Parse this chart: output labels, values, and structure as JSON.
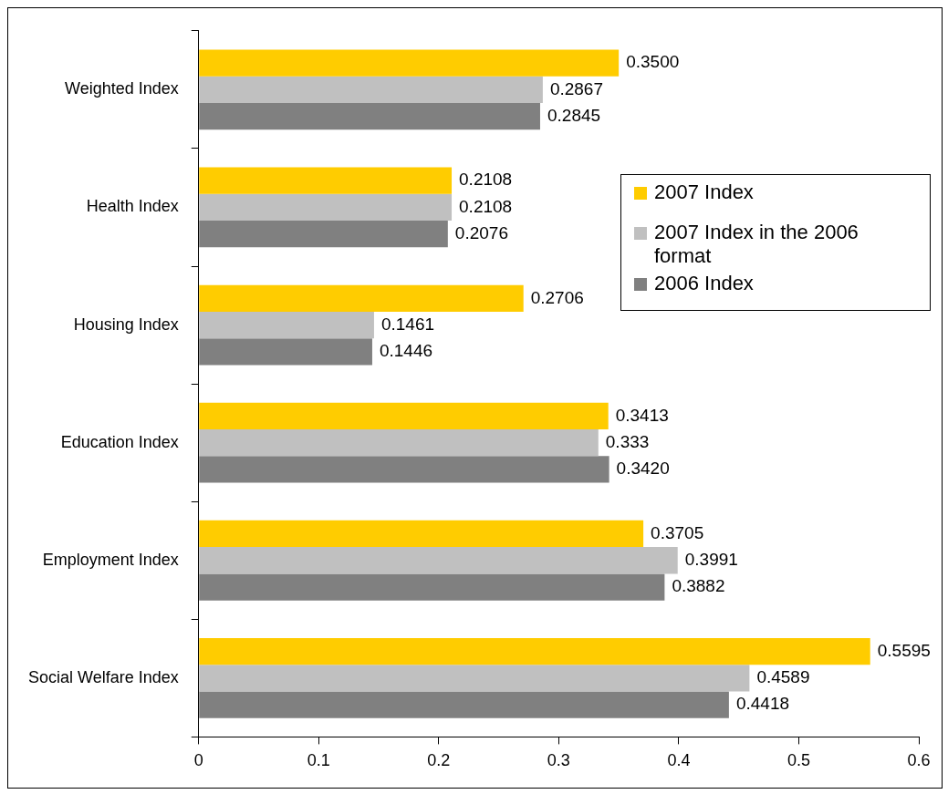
{
  "chart_data": {
    "type": "bar",
    "orientation": "horizontal",
    "categories": [
      "Weighted Index",
      "Health Index",
      "Housing Index",
      "Education Index",
      "Employment Index",
      "Social Welfare Index"
    ],
    "series": [
      {
        "name": "2007 Index",
        "color": "#ffcc00",
        "values": [
          0.35,
          0.2108,
          0.2706,
          0.3413,
          0.3705,
          0.5595
        ],
        "value_labels": [
          "0.3500",
          "0.2108",
          "0.2706",
          "0.3413",
          "0.3705",
          "0.5595"
        ]
      },
      {
        "name": "2007 Index in the 2006 format",
        "color": "#c0c0c0",
        "values": [
          0.2867,
          0.2108,
          0.1461,
          0.333,
          0.3991,
          0.4589
        ],
        "value_labels": [
          "0.2867",
          "0.2108",
          "0.1461",
          "0.333",
          "0.3991",
          "0.4589"
        ]
      },
      {
        "name": "2006 Index",
        "color": "#808080",
        "values": [
          0.2845,
          0.2076,
          0.1446,
          0.342,
          0.3882,
          0.4418
        ],
        "value_labels": [
          "0.2845",
          "0.2076",
          "0.1446",
          "0.3420",
          "0.3882",
          "0.4418"
        ]
      }
    ],
    "xlim": [
      0,
      0.6
    ],
    "xticks": [
      0,
      0.1,
      0.2,
      0.3,
      0.4,
      0.5,
      0.6
    ],
    "grid": false,
    "legend": "right"
  }
}
